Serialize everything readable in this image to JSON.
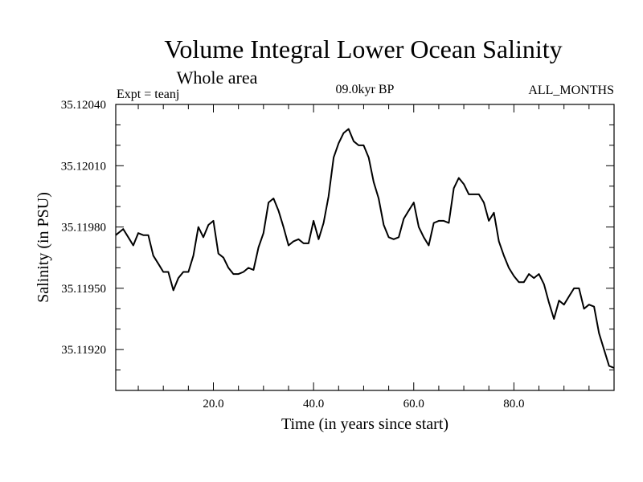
{
  "chart_data": {
    "type": "line",
    "title": "Volume Integral Lower Ocean Salinity",
    "subtitle": "Whole area",
    "annotations": {
      "left": "Expt = teanj",
      "center": "09.0kyr BP",
      "right": "ALL_MONTHS"
    },
    "xlabel": "Time (in years since start)",
    "ylabel": "Salinity (in PSU)",
    "xlim": [
      0.5,
      100
    ],
    "ylim": [
      35.119,
      35.1204
    ],
    "xticks": [
      {
        "value": 20,
        "label": "20.0"
      },
      {
        "value": 40,
        "label": "40.0"
      },
      {
        "value": 60,
        "label": "60.0"
      },
      {
        "value": 80,
        "label": "80.0"
      }
    ],
    "yticks": [
      {
        "value": 35.1192,
        "label": "35.11920"
      },
      {
        "value": 35.1195,
        "label": "35.11950"
      },
      {
        "value": 35.1198,
        "label": "35.11980"
      },
      {
        "value": 35.1201,
        "label": "35.12010"
      },
      {
        "value": 35.1204,
        "label": "35.12040"
      }
    ],
    "grid": false,
    "legend": "none",
    "series": [
      {
        "name": "Salinity",
        "color": "#000000",
        "x": [
          0.5,
          2,
          3,
          4,
          5,
          6,
          7,
          8,
          9,
          10,
          11,
          12,
          13,
          14,
          15,
          16,
          17,
          18,
          19,
          20,
          21,
          22,
          23,
          24,
          25,
          26,
          27,
          28,
          29,
          30,
          31,
          32,
          33,
          34,
          35,
          36,
          37,
          38,
          39,
          40,
          41,
          42,
          43,
          44,
          45,
          46,
          47,
          48,
          49,
          50,
          51,
          52,
          53,
          54,
          55,
          56,
          57,
          58,
          59,
          60,
          61,
          62,
          63,
          64,
          65,
          66,
          67,
          68,
          69,
          70,
          71,
          72,
          73,
          74,
          75,
          76,
          77,
          78,
          79,
          80,
          81,
          82,
          83,
          84,
          85,
          86,
          87,
          88,
          89,
          90,
          91,
          92,
          93,
          94,
          95,
          96,
          97,
          98,
          99,
          100
        ],
        "values": [
          35.11976,
          35.11979,
          35.11975,
          35.11971,
          35.11977,
          35.11976,
          35.11976,
          35.11966,
          35.11962,
          35.11958,
          35.11958,
          35.11949,
          35.11955,
          35.11958,
          35.11958,
          35.11966,
          35.1198,
          35.11975,
          35.11981,
          35.11983,
          35.11967,
          35.11965,
          35.1196,
          35.11957,
          35.11957,
          35.11958,
          35.1196,
          35.11959,
          35.1197,
          35.11977,
          35.11992,
          35.11994,
          35.11988,
          35.1198,
          35.11971,
          35.11973,
          35.11974,
          35.11972,
          35.11972,
          35.11983,
          35.11974,
          35.11982,
          35.11995,
          35.12014,
          35.12021,
          35.12026,
          35.12028,
          35.12022,
          35.1202,
          35.1202,
          35.12014,
          35.12002,
          35.11994,
          35.11981,
          35.11975,
          35.11974,
          35.11975,
          35.11984,
          35.11988,
          35.11992,
          35.1198,
          35.11975,
          35.11971,
          35.11982,
          35.11983,
          35.11983,
          35.11982,
          35.11999,
          35.12004,
          35.12001,
          35.11996,
          35.11996,
          35.11996,
          35.11992,
          35.11983,
          35.11987,
          35.11973,
          35.11966,
          35.1196,
          35.11956,
          35.11953,
          35.11953,
          35.11957,
          35.11955,
          35.11957,
          35.11952,
          35.11943,
          35.11935,
          35.11944,
          35.11942,
          35.11946,
          35.1195,
          35.1195,
          35.1194,
          35.11942,
          35.11941,
          35.11928,
          35.1192,
          35.11912,
          35.11911
        ]
      }
    ]
  }
}
